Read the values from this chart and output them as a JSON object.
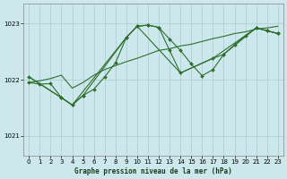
{
  "bg_color": "#cce8ec",
  "grid_color": "#b0d0d4",
  "line_color": "#2d6e2d",
  "marker_color": "#2d6e2d",
  "title": "Graphe pression niveau de la mer (hPa)",
  "ylim": [
    1020.65,
    1023.35
  ],
  "xlim": [
    -0.5,
    23.5
  ],
  "yticks": [
    1021,
    1022,
    1023
  ],
  "xticks": [
    0,
    1,
    2,
    3,
    4,
    5,
    6,
    7,
    8,
    9,
    10,
    11,
    12,
    13,
    14,
    15,
    16,
    17,
    18,
    19,
    20,
    21,
    22,
    23
  ],
  "series1_x": [
    0,
    1,
    2,
    3,
    4,
    5,
    6,
    7,
    8,
    9,
    10,
    11,
    12,
    13,
    14,
    15,
    16,
    17,
    18,
    19,
    20,
    21,
    22,
    23
  ],
  "series1_y": [
    1021.95,
    1021.92,
    1021.93,
    1021.68,
    1021.55,
    1021.72,
    1021.83,
    1022.05,
    1022.3,
    1022.75,
    1022.95,
    1022.97,
    1022.93,
    1022.72,
    1022.52,
    1022.28,
    1022.07,
    1022.18,
    1022.45,
    1022.62,
    1022.78,
    1022.92,
    1022.87,
    1022.82
  ],
  "series2_x": [
    0,
    1,
    2,
    3,
    4,
    5,
    6,
    7,
    8,
    9,
    10,
    11,
    12,
    13,
    14,
    15,
    16,
    17,
    18,
    19,
    20,
    21,
    22,
    23
  ],
  "series2_y": [
    1021.95,
    1021.98,
    1022.02,
    1022.08,
    1021.85,
    1021.95,
    1022.08,
    1022.18,
    1022.25,
    1022.32,
    1022.38,
    1022.45,
    1022.52,
    1022.55,
    1022.6,
    1022.63,
    1022.68,
    1022.73,
    1022.77,
    1022.82,
    1022.85,
    1022.9,
    1022.92,
    1022.95
  ],
  "series3_x": [
    0,
    3,
    4,
    5,
    9,
    10,
    11,
    12,
    13,
    14,
    17,
    18,
    21,
    22,
    23
  ],
  "series3_y": [
    1022.05,
    1021.68,
    1021.55,
    1021.72,
    1022.75,
    1022.95,
    1022.97,
    1022.93,
    1022.52,
    1022.12,
    1022.38,
    1022.45,
    1022.92,
    1022.87,
    1022.82
  ],
  "series4_x": [
    0,
    3,
    4,
    9,
    10,
    14,
    17,
    21,
    23
  ],
  "series4_y": [
    1022.05,
    1021.68,
    1021.55,
    1022.75,
    1022.95,
    1022.12,
    1022.38,
    1022.92,
    1022.82
  ]
}
